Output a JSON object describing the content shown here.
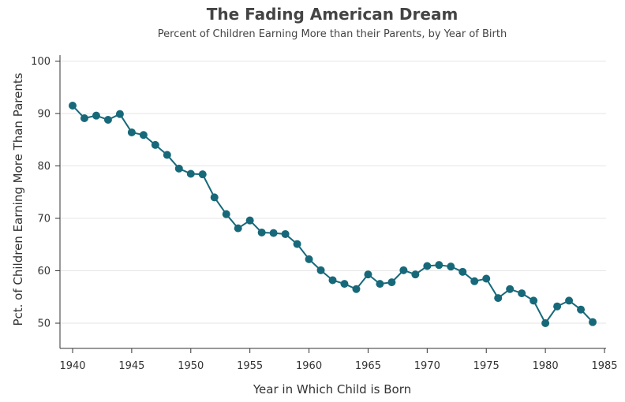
{
  "chart_data": {
    "type": "line",
    "title": "The Fading American Dream",
    "subtitle": "Percent of Children Earning More than their Parents, by Year of Birth",
    "xlabel": "Year in Which Child is Born",
    "ylabel": "Pct. of Children Earning More Than Parents",
    "xlim": [
      1940,
      1985
    ],
    "ylim": [
      45,
      101
    ],
    "xticks": [
      1940,
      1945,
      1950,
      1955,
      1960,
      1965,
      1970,
      1975,
      1980,
      1985
    ],
    "yticks": [
      50,
      60,
      70,
      80,
      90,
      100
    ],
    "grid": true,
    "color": "#17697a",
    "series": [
      {
        "name": "Pct. of Children Earning More Than Parents",
        "x": [
          1940,
          1941,
          1942,
          1943,
          1944,
          1945,
          1946,
          1947,
          1948,
          1949,
          1950,
          1951,
          1952,
          1953,
          1954,
          1955,
          1956,
          1957,
          1958,
          1959,
          1960,
          1961,
          1962,
          1963,
          1964,
          1965,
          1966,
          1967,
          1968,
          1969,
          1970,
          1971,
          1972,
          1973,
          1974,
          1975,
          1976,
          1977,
          1978,
          1979,
          1980,
          1981,
          1982,
          1983,
          1984
        ],
        "y": [
          91.5,
          89.1,
          89.6,
          88.8,
          89.9,
          86.4,
          85.9,
          84.0,
          82.1,
          79.5,
          78.5,
          78.4,
          74.0,
          70.8,
          68.1,
          69.6,
          67.3,
          67.2,
          67.0,
          65.1,
          62.2,
          60.1,
          58.2,
          57.5,
          56.5,
          59.3,
          57.5,
          57.8,
          60.1,
          59.3,
          60.9,
          61.1,
          60.8,
          59.8,
          58.0,
          58.5,
          54.8,
          56.5,
          55.7,
          54.3,
          50.0,
          53.2,
          54.3,
          52.6,
          50.2
        ]
      }
    ]
  }
}
